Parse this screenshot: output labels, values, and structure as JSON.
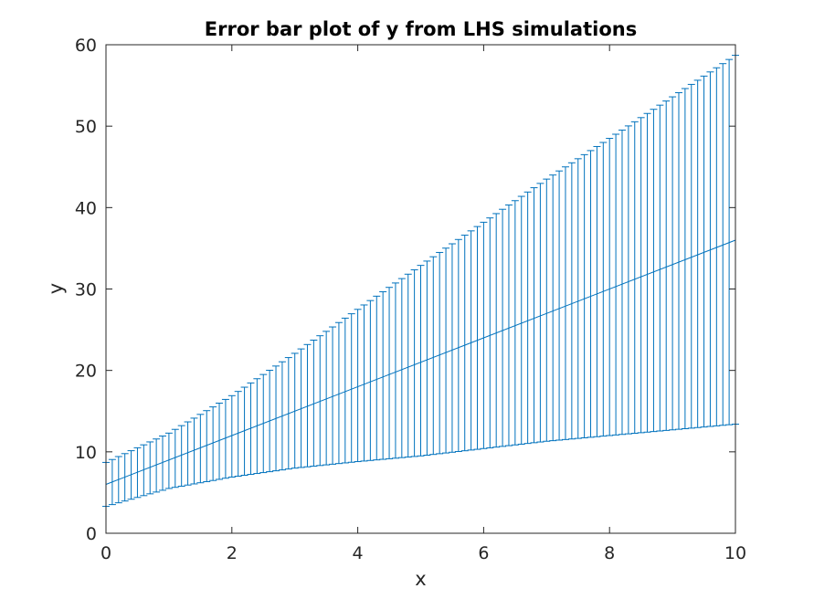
{
  "chart_data": {
    "type": "line",
    "title": "Error bar plot of y from LHS simulations",
    "xlabel": "x",
    "ylabel": "y",
    "xlim": [
      0,
      10
    ],
    "ylim": [
      0,
      60
    ],
    "x_ticks": [
      0,
      2,
      4,
      6,
      8,
      10
    ],
    "y_ticks": [
      0,
      10,
      20,
      30,
      40,
      50,
      60
    ],
    "x_tick_labels": [
      "0",
      "2",
      "4",
      "6",
      "8",
      "10"
    ],
    "y_tick_labels": [
      "0",
      "10",
      "20",
      "30",
      "40",
      "50",
      "60"
    ],
    "grid": false,
    "legend": "none",
    "color": "#0072BD",
    "series": [
      {
        "kind": "errorbar",
        "x_start": 0,
        "x_end": 10,
        "n_points": 101,
        "mean": {
          "x": [
            0,
            10
          ],
          "y": [
            6.0,
            36.0
          ]
        },
        "upper": {
          "x": [
            0,
            1,
            2,
            3,
            4,
            5,
            6,
            7,
            8,
            9,
            10
          ],
          "y": [
            8.7,
            12.3,
            16.9,
            22.1,
            27.5,
            32.9,
            38.2,
            43.5,
            48.5,
            53.6,
            58.7
          ]
        },
        "lower": {
          "x": [
            0,
            1,
            2,
            3,
            4,
            5,
            6,
            7,
            8,
            9,
            10
          ],
          "y": [
            3.3,
            5.5,
            6.9,
            8.0,
            8.8,
            9.5,
            10.4,
            11.3,
            12.0,
            12.7,
            13.4
          ]
        }
      }
    ]
  }
}
